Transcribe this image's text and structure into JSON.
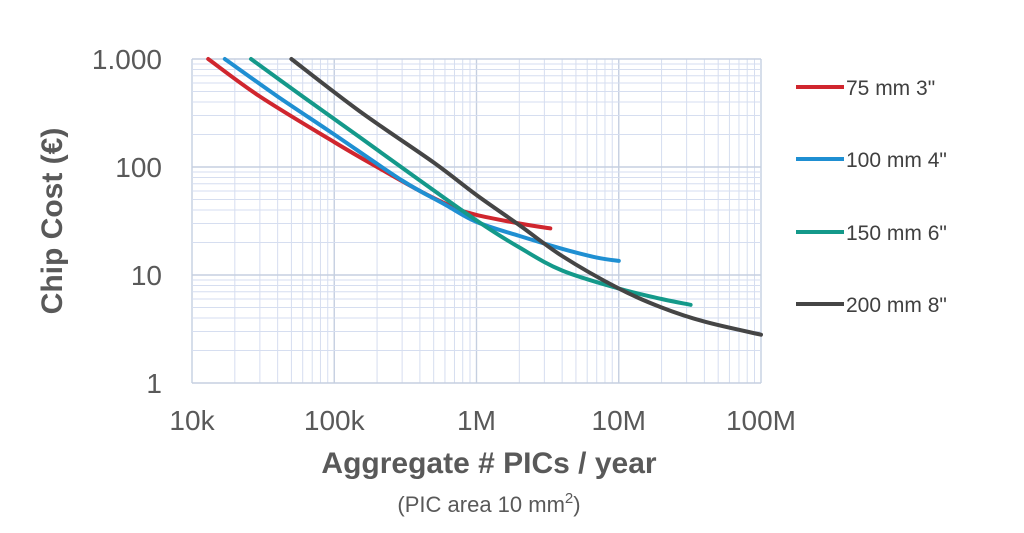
{
  "chart_data": {
    "type": "line",
    "xscale": "log",
    "yscale": "log",
    "xlim": [
      10000,
      100000000
    ],
    "ylim": [
      1,
      1000
    ],
    "grid": true,
    "legend_placement": "right",
    "xlabel": "Aggregate # PICs / year",
    "xlabel_sub": "(PIC area 10 mm",
    "xlabel_sub_sup": "2",
    "xlabel_sub_end": ")",
    "ylabel": "Chip Cost (€)",
    "x_ticks": [
      {
        "value": 10000,
        "label": "10k"
      },
      {
        "value": 100000,
        "label": "100k"
      },
      {
        "value": 1000000,
        "label": "1M"
      },
      {
        "value": 10000000,
        "label": "10M"
      },
      {
        "value": 100000000,
        "label": "100M"
      }
    ],
    "y_ticks": [
      {
        "value": 1,
        "label": "1"
      },
      {
        "value": 10,
        "label": "10"
      },
      {
        "value": 100,
        "label": "100"
      },
      {
        "value": 1000,
        "label": "1.000"
      }
    ],
    "series": [
      {
        "name": "75 mm   3\"",
        "color": "#d0262e",
        "points": [
          [
            13000,
            1000
          ],
          [
            30000,
            450
          ],
          [
            100000,
            170
          ],
          [
            200000,
            100
          ],
          [
            400000,
            60
          ],
          [
            700000,
            42
          ],
          [
            1000000,
            36
          ],
          [
            2000000,
            30
          ],
          [
            3300000,
            27
          ]
        ]
      },
      {
        "name": "100 mm   4\"",
        "color": "#1f8fd2",
        "points": [
          [
            17000,
            1000
          ],
          [
            40000,
            450
          ],
          [
            100000,
            200
          ],
          [
            300000,
            75
          ],
          [
            600000,
            45
          ],
          [
            1000000,
            31
          ],
          [
            2000000,
            23
          ],
          [
            4000000,
            17.5
          ],
          [
            7000000,
            14.5
          ],
          [
            10000000,
            13.5
          ]
        ]
      },
      {
        "name": "150 mm   6\"",
        "color": "#14998a",
        "points": [
          [
            26000,
            1000
          ],
          [
            60000,
            450
          ],
          [
            150000,
            190
          ],
          [
            400000,
            75
          ],
          [
            1000000,
            32
          ],
          [
            2000000,
            18
          ],
          [
            4000000,
            11
          ],
          [
            10000000,
            7.5
          ],
          [
            20000000,
            6
          ],
          [
            32000000,
            5.3
          ]
        ]
      },
      {
        "name": "200 mm   8\"",
        "color": "#454545",
        "points": [
          [
            50000,
            1000
          ],
          [
            150000,
            330
          ],
          [
            500000,
            110
          ],
          [
            1000000,
            55
          ],
          [
            2000000,
            29
          ],
          [
            4000000,
            15
          ],
          [
            10000000,
            7.5
          ],
          [
            20000000,
            5
          ],
          [
            40000000,
            3.7
          ],
          [
            100000000,
            2.8
          ]
        ]
      }
    ]
  }
}
